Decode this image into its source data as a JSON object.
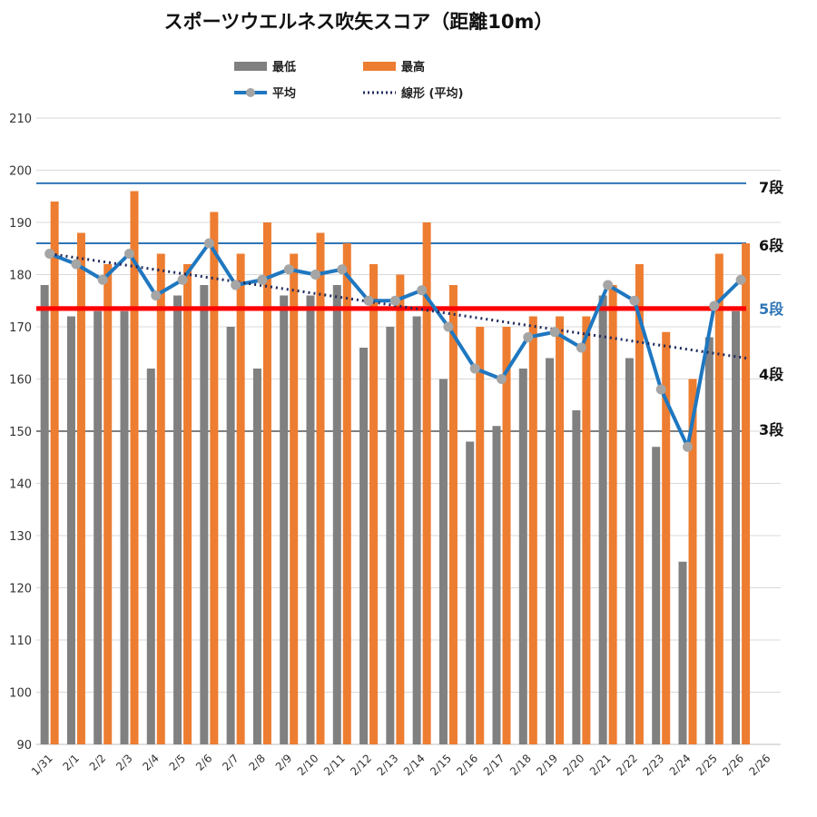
{
  "title": "スポーツウエルネス吹矢スコア（距離10m）",
  "legend": {
    "min": "最低",
    "max": "最高",
    "avg": "平均",
    "trend": "線形 (平均)"
  },
  "colors": {
    "min": "#808080",
    "max": "#ED7D31",
    "avg": "#1F77C0",
    "avg_marker": "#A5A5A5",
    "trend": "#1F2A5C",
    "ref_7": "#2E75B6",
    "ref_6": "#2E75B6",
    "ref_5": "#FF0000",
    "ref_3": "#808080",
    "label_5": "#2E75B6"
  },
  "chart_data": {
    "type": "bar",
    "title": "スポーツウエルネス吹矢スコア（距離10m）",
    "categories": [
      "1/31",
      "2/1",
      "2/2",
      "2/3",
      "2/4",
      "2/5",
      "2/6",
      "2/7",
      "2/8",
      "2/9",
      "2/10",
      "2/11",
      "2/12",
      "2/13",
      "2/14",
      "2/15",
      "2/16",
      "2/17",
      "2/18",
      "2/19",
      "2/20",
      "2/21",
      "2/22",
      "2/23",
      "2/24",
      "2/25",
      "2/26",
      "2/26"
    ],
    "ylim": [
      90,
      210
    ],
    "yticks": [
      90,
      100,
      110,
      120,
      130,
      140,
      150,
      160,
      170,
      180,
      190,
      200,
      210
    ],
    "grid": true,
    "legend_position": "top",
    "series": [
      {
        "name": "最低",
        "type": "bar",
        "values": [
          178,
          172,
          173,
          173,
          162,
          176,
          178,
          170,
          162,
          176,
          176,
          178,
          166,
          170,
          172,
          160,
          148,
          151,
          162,
          164,
          154,
          176,
          164,
          147,
          125,
          168,
          173,
          null
        ]
      },
      {
        "name": "最高",
        "type": "bar",
        "values": [
          194,
          188,
          182,
          196,
          184,
          182,
          192,
          184,
          190,
          184,
          188,
          186,
          182,
          180,
          190,
          178,
          170,
          170,
          172,
          172,
          172,
          178,
          182,
          169,
          160,
          184,
          186,
          null
        ]
      },
      {
        "name": "平均",
        "type": "line",
        "values": [
          184,
          182,
          179,
          184,
          176,
          179,
          186,
          178,
          179,
          181,
          180,
          181,
          175,
          175,
          177,
          170,
          162,
          160,
          168,
          169,
          166,
          178,
          175,
          158,
          147,
          174,
          179,
          null
        ]
      },
      {
        "name": "線形 (平均)",
        "type": "trendline",
        "start": 184,
        "end": 164
      }
    ],
    "reference_lines": [
      {
        "label": "7段",
        "value": 197.5
      },
      {
        "label": "6段",
        "value": 186
      },
      {
        "label": "5段",
        "value": 173.5
      },
      {
        "label": "4段",
        "value": null
      },
      {
        "label": "3段",
        "value": 150
      }
    ]
  }
}
